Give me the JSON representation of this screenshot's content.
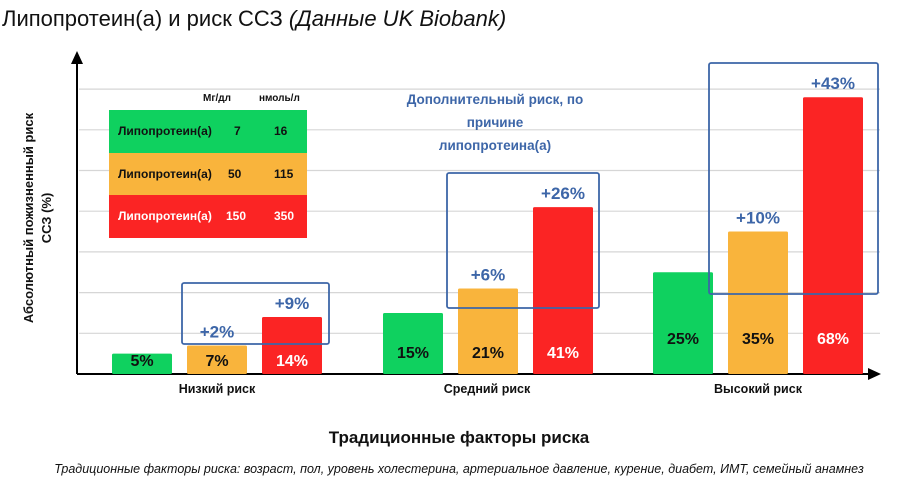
{
  "title": {
    "main": "Липопротеин(а) и риск ССЗ ",
    "italic": "(Данные UK Biobank)"
  },
  "chart_data": {
    "type": "bar",
    "title": "Липопротеин(а) и риск ССЗ (Данные UK Biobank)",
    "xlabel": "Традиционные факторы риска",
    "ylabel": "Абсолютный пожизненный риск ССЗ (%)",
    "categories": [
      "Низкий риск",
      "Средний риск",
      "Высокий риск"
    ],
    "series": [
      {
        "values": [
          5,
          15,
          25
        ],
        "color": "#0fd15f",
        "labels": [
          "5%",
          "15%",
          "25%"
        ]
      },
      {
        "values": [
          7,
          21,
          35
        ],
        "color": "#f9b43c",
        "labels": [
          "7%",
          "21%",
          "35%"
        ]
      },
      {
        "values": [
          14,
          41,
          68
        ],
        "color": "#fb2424",
        "labels": [
          "14%",
          "41%",
          "68%"
        ]
      }
    ],
    "increments": [
      {
        "category": "Низкий риск",
        "orange": "+2%",
        "red": "+9%"
      },
      {
        "category": "Средний риск",
        "orange": "+6%",
        "red": "+26%"
      },
      {
        "category": "Высокий риск",
        "orange": "+10%",
        "red": "+43%"
      }
    ],
    "ylim": [
      0,
      78
    ],
    "grid": true,
    "annotation": "Дополнительный риск, по причине липопротеина(а)",
    "accent_color": "#3d66a8"
  },
  "legend_table": {
    "headers": [
      "Мг/дл",
      "нмоль/л"
    ],
    "rows": [
      {
        "label": "Липопротеин(а)",
        "mg": "7",
        "nmol": "16",
        "color": "#0fd15f",
        "text": "#111"
      },
      {
        "label": "Липопротеин(а)",
        "mg": "50",
        "nmol": "115",
        "color": "#f9b43c",
        "text": "#111"
      },
      {
        "label": "Липопротеин(а)",
        "mg": "150",
        "nmol": "350",
        "color": "#fb2424",
        "text": "#fff"
      }
    ]
  },
  "annotation_lines": [
    "Дополнительный риск, по причине",
    "липопротеина(а)"
  ],
  "footnote": "Традиционные факторы риска: возраст, пол, уровень холестерина, артериальное давление, курение, диабет, ИМТ, семейный анамнез"
}
